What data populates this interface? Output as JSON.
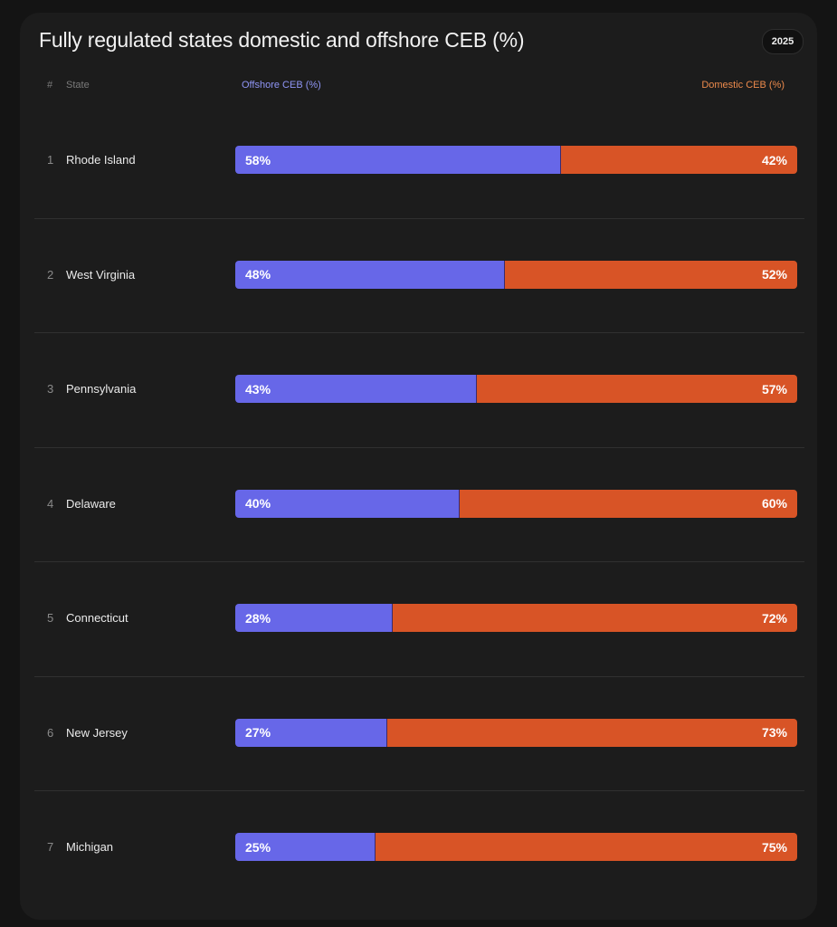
{
  "title": "Fully regulated states domestic and offshore CEB (%)",
  "year_badge": "2025",
  "headers": {
    "rank": "#",
    "state": "State",
    "offshore": "Offshore CEB (%)",
    "domestic": "Domestic CEB (%)"
  },
  "colors": {
    "offshore": "#6767e8",
    "domestic": "#d85426",
    "background": "#1c1c1c"
  },
  "chart_data": {
    "type": "bar",
    "stacked": true,
    "orientation": "horizontal",
    "title": "Fully regulated states domestic and offshore CEB (%)",
    "categories": [
      "Rhode Island",
      "West Virginia",
      "Pennsylvania",
      "Delaware",
      "Connecticut",
      "New Jersey",
      "Michigan"
    ],
    "ranks": [
      "1",
      "2",
      "3",
      "4",
      "5",
      "6",
      "7"
    ],
    "series": [
      {
        "name": "Offshore CEB (%)",
        "values": [
          58,
          48,
          43,
          40,
          28,
          27,
          25
        ],
        "labels": [
          "58%",
          "48%",
          "43%",
          "40%",
          "28%",
          "27%",
          "25%"
        ]
      },
      {
        "name": "Domestic CEB (%)",
        "values": [
          42,
          52,
          57,
          60,
          72,
          73,
          75
        ],
        "labels": [
          "42%",
          "52%",
          "57%",
          "60%",
          "72%",
          "73%",
          "75%"
        ]
      }
    ],
    "xlim": [
      0,
      100
    ]
  }
}
